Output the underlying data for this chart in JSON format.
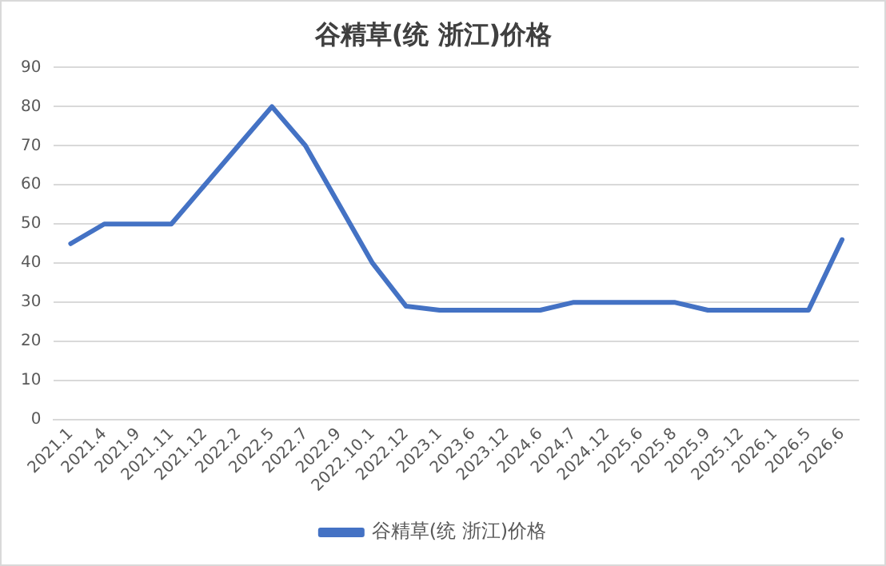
{
  "chart_data": {
    "type": "line",
    "title": "谷精草(统 浙江)价格",
    "categories": [
      "2021.1",
      "2021.4",
      "2021.9",
      "2021.11",
      "2021.12",
      "2022.2",
      "2022.5",
      "2022.7",
      "2022.9",
      "2022.10.1",
      "2022.12",
      "2023.1",
      "2023.6",
      "2023.12",
      "2024.6",
      "2024.7",
      "2024.12",
      "2025.6",
      "2025.8",
      "2025.9",
      "2025.12",
      "2026.1",
      "2026.5",
      "2026.6"
    ],
    "series": [
      {
        "name": "谷精草(统 浙江)价格",
        "color": "#4472c4",
        "values": [
          45,
          50,
          50,
          50,
          60,
          70,
          80,
          70,
          55,
          40,
          29,
          28,
          28,
          28,
          28,
          30,
          30,
          30,
          30,
          28,
          28,
          28,
          28,
          46
        ]
      }
    ],
    "ylim": [
      0,
      90
    ],
    "yticks": [
      0,
      10,
      20,
      30,
      40,
      50,
      60,
      70,
      80,
      90
    ],
    "grid": "y",
    "legend": "bottom",
    "marker": "none",
    "line_style": "solid"
  }
}
